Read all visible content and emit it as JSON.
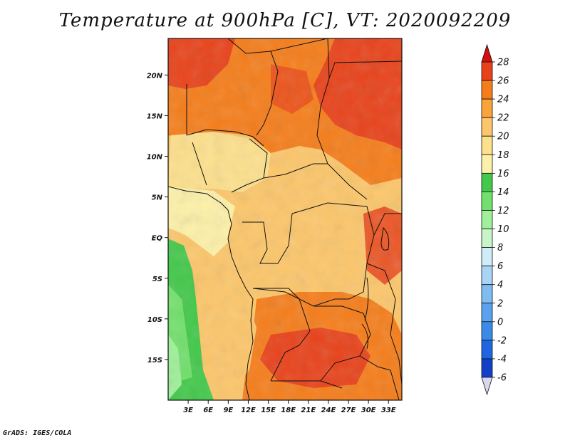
{
  "title": "Temperature at 900hPa [C], VT: 2020092209",
  "credit": "GrADS: IGES/COLA",
  "map": {
    "region": "Central Africa",
    "lon_range": [
      0,
      35
    ],
    "lat_range": [
      -20,
      24.5
    ],
    "lon_ticks": [
      "3E",
      "6E",
      "9E",
      "12E",
      "15E",
      "18E",
      "21E",
      "24E",
      "27E",
      "30E",
      "33E"
    ],
    "lat_ticks": [
      "20N",
      "15N",
      "10N",
      "5N",
      "EQ",
      "5S",
      "10S",
      "15S"
    ]
  },
  "colorbar": {
    "unit": "C",
    "levels": [
      "28",
      "26",
      "24",
      "22",
      "20",
      "18",
      "16",
      "14",
      "12",
      "10",
      "8",
      "6",
      "4",
      "2",
      "0",
      "-2",
      "-4",
      "-6"
    ],
    "colors": [
      "#1f0a7a",
      "#1240c8",
      "#1f66e0",
      "#3a8ae8",
      "#5ba2ee",
      "#7fbcf2",
      "#a8d4f5",
      "#d0ecf8",
      "#c8f5c8",
      "#9ef09a",
      "#72e06c",
      "#42c84a",
      "#fdf0a8",
      "#fde08c",
      "#fcc66a",
      "#f9a43a",
      "#f57d1a",
      "#e8421a",
      "#d4100e"
    ],
    "low_arrow_color": "#d8d8f0",
    "high_arrow_color": "#d4100e"
  }
}
